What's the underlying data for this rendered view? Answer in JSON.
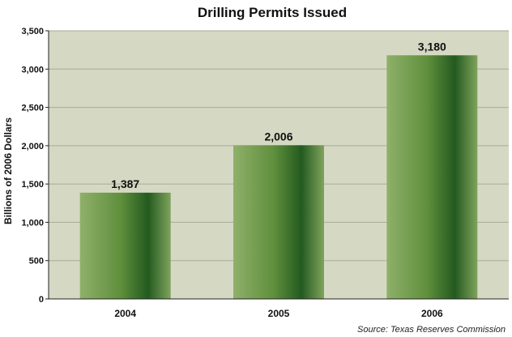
{
  "chart_data": {
    "type": "bar",
    "title": "Drilling Permits Issued",
    "ylabel": "Billions of 2006 Dollars",
    "xlabel": "",
    "categories": [
      "2004",
      "2005",
      "2006"
    ],
    "values": [
      1387,
      2006,
      3180
    ],
    "value_labels": [
      "1,387",
      "2,006",
      "3,180"
    ],
    "ylim": [
      0,
      3500
    ],
    "yticks": [
      0,
      500,
      1000,
      1500,
      2000,
      2500,
      3000,
      3500
    ],
    "ytick_labels": [
      "0",
      "500",
      "1,000",
      "1,500",
      "2,000",
      "2,500",
      "3,000",
      "3,500"
    ],
    "grid": true,
    "legend": "none",
    "source": "Source: Texas Reserves Commission",
    "colors": {
      "plot_background": "#d5d9c4",
      "grid": "#a7ab98",
      "bar_light": "#8fb06a",
      "bar_mid": "#5f8f3c",
      "bar_dark": "#235a1f",
      "bar_edge": "#7fa35c"
    }
  }
}
